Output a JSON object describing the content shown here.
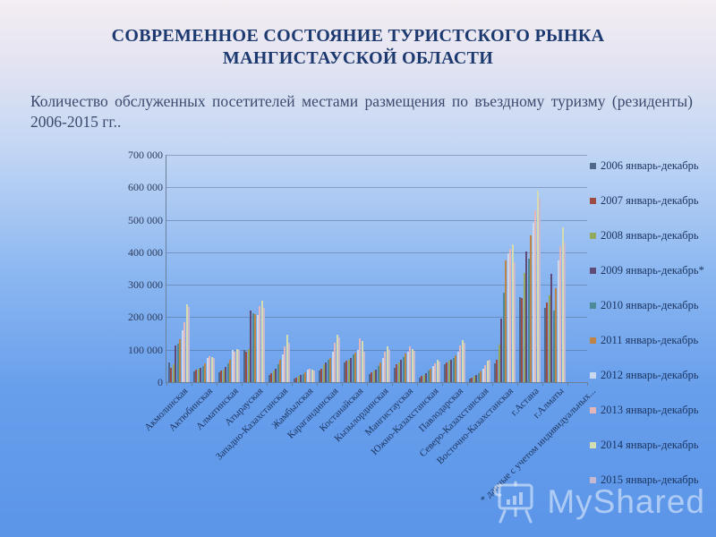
{
  "slide": {
    "title": "СОВРЕМЕННОЕ СОСТОЯНИЕ ТУРИСТСКОГО РЫНКА МАНГИСТАУСКОЙ ОБЛАСТИ",
    "subtitle": "Количество обслуженных посетителей местами размещения по въездному туризму (резиденты) 2006-2015 гг..",
    "background_top_color": "#f4eef3",
    "background_bottom_color": "#5b95e8",
    "title_color": "#1d3a70"
  },
  "watermark": {
    "text": "MyShared",
    "icon": "presentation-board-icon"
  },
  "chart_data": {
    "type": "bar",
    "title": "",
    "xlabel": "",
    "ylabel": "",
    "ylim": [
      0,
      700000
    ],
    "grid": true,
    "legend_position": "right",
    "ytick_labels": [
      "0",
      "100 000",
      "200 000",
      "300 000",
      "400 000",
      "500 000",
      "600 000",
      "700 000"
    ],
    "footnote_label": "* данные с учетом индивидуальных...",
    "categories": [
      "Акмолинская",
      "Актюбинская",
      "Алматинская",
      "Атырауская",
      "Западно-Казахстанская",
      "Жамбылская",
      "Карагандинская",
      "Костанайская",
      "Кызылординская",
      "Мангистауская",
      "Южно-Казахстанская",
      "Павлодарская",
      "Северо-Казахстанская",
      "Восточно-Казахстанская",
      "г.Астана",
      "г.Алматы"
    ],
    "series": [
      {
        "name": "2006 январь-декабрь",
        "color": "#51688d",
        "values": [
          62000,
          33000,
          30000,
          98000,
          22000,
          12000,
          35000,
          60000,
          25000,
          45000,
          15000,
          55000,
          10000,
          58000,
          262000,
          230000
        ]
      },
      {
        "name": "2007 январь-декабрь",
        "color": "#9e4b44",
        "values": [
          45000,
          38000,
          36000,
          95000,
          28000,
          15000,
          42000,
          65000,
          30000,
          55000,
          18000,
          60000,
          14000,
          68000,
          258000,
          245000
        ]
      },
      {
        "name": "2008 январь-декабрь",
        "color": "#93a95e",
        "values": [
          55000,
          42000,
          40000,
          103000,
          35000,
          18000,
          55000,
          70000,
          35000,
          62000,
          22000,
          65000,
          18000,
          115000,
          336000,
          268000
        ]
      },
      {
        "name": "2009 январь-декабрь*",
        "color": "#5f4a78",
        "values": [
          112000,
          45000,
          48000,
          221000,
          42000,
          22000,
          62000,
          75000,
          40000,
          70000,
          28000,
          70000,
          22000,
          195000,
          402000,
          333000
        ]
      },
      {
        "name": "2010 январь-декабрь",
        "color": "#4b8a99",
        "values": [
          118000,
          50000,
          58000,
          213000,
          55000,
          25000,
          68000,
          85000,
          50000,
          78000,
          35000,
          75000,
          28000,
          277000,
          380000,
          221000
        ]
      },
      {
        "name": "2011 январь-декабрь",
        "color": "#bd8448",
        "values": [
          133000,
          58000,
          68000,
          210000,
          68000,
          30000,
          75000,
          90000,
          60000,
          88000,
          42000,
          82000,
          34000,
          375000,
          453000,
          290000
        ]
      },
      {
        "name": "2012 январь-декабрь",
        "color": "#c9d8ec",
        "values": [
          160000,
          75000,
          98000,
          207000,
          85000,
          38000,
          95000,
          100000,
          75000,
          95000,
          50000,
          95000,
          42000,
          398000,
          490000,
          375000
        ]
      },
      {
        "name": "2013 январь-декабрь",
        "color": "#e3b7ba",
        "values": [
          185000,
          80000,
          95000,
          235000,
          110000,
          42000,
          120000,
          135000,
          95000,
          110000,
          58000,
          112000,
          52000,
          410000,
          530000,
          420000
        ]
      },
      {
        "name": "2014 январь-декабрь",
        "color": "#d5dcb2",
        "values": [
          240000,
          78000,
          103000,
          252000,
          145000,
          40000,
          145000,
          128000,
          110000,
          102000,
          68000,
          130000,
          65000,
          425000,
          590000,
          476000
        ]
      },
      {
        "name": "2015 январь-декабрь",
        "color": "#c7b8d2",
        "values": [
          232000,
          74000,
          100000,
          230000,
          120000,
          35000,
          138000,
          95000,
          100000,
          96000,
          64000,
          122000,
          70000,
          370000,
          565000,
          431000
        ]
      }
    ]
  }
}
